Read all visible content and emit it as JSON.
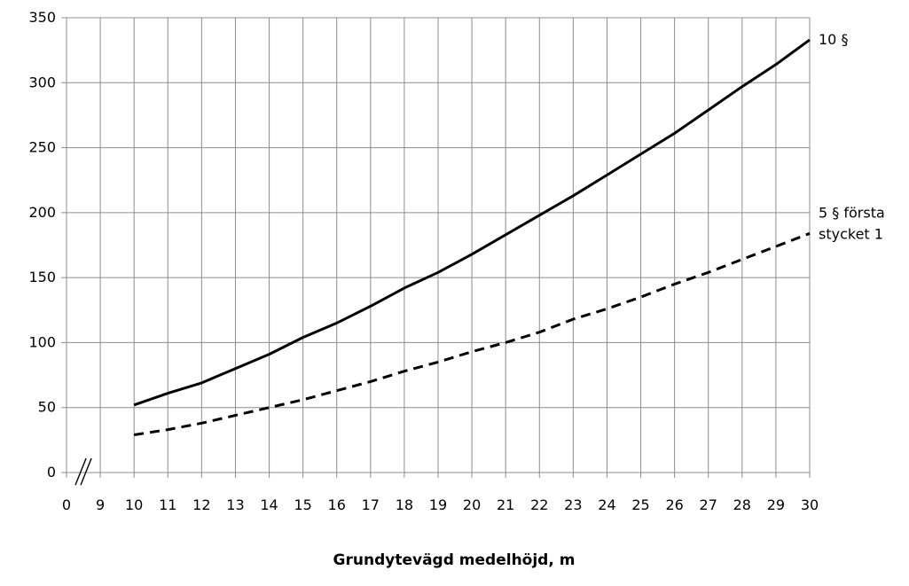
{
  "chart_data": {
    "type": "line",
    "title": "",
    "xlabel": "Grundytevägd medelhöjd, m",
    "ylabel": "",
    "grid": true,
    "axis_break": "x",
    "x_ticks": [
      "0",
      "9",
      "10",
      "11",
      "12",
      "13",
      "14",
      "15",
      "16",
      "17",
      "18",
      "19",
      "20",
      "21",
      "22",
      "23",
      "24",
      "25",
      "26",
      "27",
      "28",
      "29",
      "30"
    ],
    "y_ticks": [
      0,
      50,
      100,
      150,
      200,
      250,
      300,
      350
    ],
    "ylim": [
      0,
      350
    ],
    "x": [
      10,
      11,
      12,
      13,
      14,
      15,
      16,
      17,
      18,
      19,
      20,
      21,
      22,
      23,
      24,
      25,
      26,
      27,
      28,
      29,
      30
    ],
    "series": [
      {
        "name": "10 §",
        "label_lines": [
          "10 §"
        ],
        "style": "solid",
        "color": "#000000",
        "values": [
          52,
          61,
          69,
          80,
          91,
          104,
          115,
          128,
          142,
          154,
          168,
          183,
          198,
          213,
          229,
          245,
          261,
          279,
          297,
          314,
          333
        ]
      },
      {
        "name": "5 § första stycket 1",
        "label_lines": [
          "5 § första",
          "stycket 1"
        ],
        "style": "dashed",
        "color": "#000000",
        "values": [
          29,
          33,
          38,
          44,
          50,
          56,
          63,
          70,
          78,
          85,
          93,
          100,
          108,
          118,
          126,
          135,
          145,
          154,
          164,
          174,
          184
        ]
      }
    ]
  }
}
